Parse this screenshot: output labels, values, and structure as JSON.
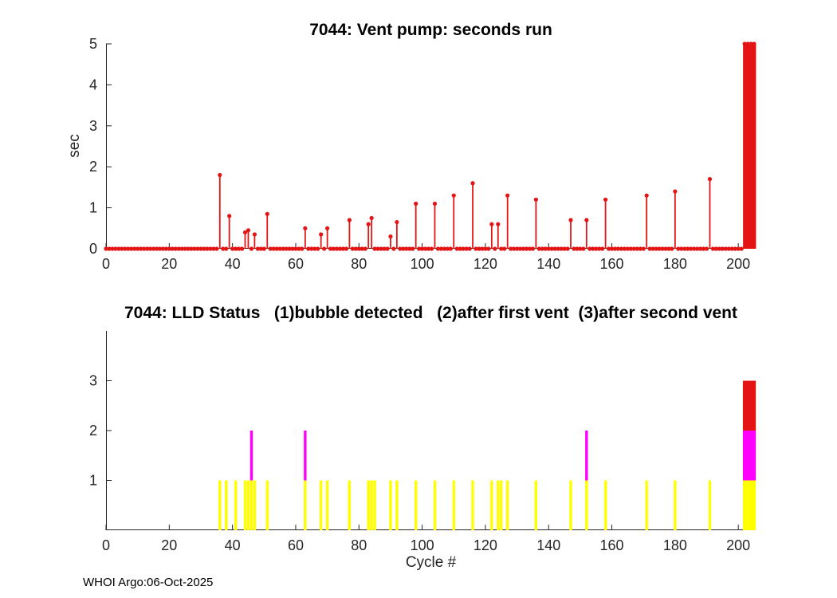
{
  "page": {
    "background": "#ffffff",
    "axis_color": "#262626",
    "footer": "WHOI Argo:06-Oct-2025"
  },
  "chart_data": [
    {
      "type": "stem",
      "title": "7044: Vent pump: seconds run",
      "xlabel": "",
      "ylabel": "sec",
      "xlim": [
        0,
        205.5
      ],
      "ylim": [
        0,
        5
      ],
      "xticks": [
        0,
        20,
        40,
        60,
        80,
        100,
        120,
        140,
        160,
        180,
        200
      ],
      "yticks": [
        0,
        1,
        2,
        3,
        4,
        5
      ],
      "grid": false,
      "legend": "none",
      "color": "#e51414",
      "zero_value_cycle_range": [
        0,
        201
      ],
      "points": [
        {
          "x": 36,
          "y": 1.8
        },
        {
          "x": 39,
          "y": 0.8
        },
        {
          "x": 44,
          "y": 0.4
        },
        {
          "x": 45,
          "y": 0.45
        },
        {
          "x": 47,
          "y": 0.35
        },
        {
          "x": 51,
          "y": 0.85
        },
        {
          "x": 63,
          "y": 0.5
        },
        {
          "x": 68,
          "y": 0.35
        },
        {
          "x": 70,
          "y": 0.5
        },
        {
          "x": 77,
          "y": 0.7
        },
        {
          "x": 83,
          "y": 0.6
        },
        {
          "x": 84,
          "y": 0.75
        },
        {
          "x": 90,
          "y": 0.3
        },
        {
          "x": 92,
          "y": 0.65
        },
        {
          "x": 98,
          "y": 1.1
        },
        {
          "x": 104,
          "y": 1.1
        },
        {
          "x": 110,
          "y": 1.3
        },
        {
          "x": 116,
          "y": 1.6
        },
        {
          "x": 122,
          "y": 0.6
        },
        {
          "x": 124,
          "y": 0.6
        },
        {
          "x": 127,
          "y": 1.3
        },
        {
          "x": 136,
          "y": 1.2
        },
        {
          "x": 147,
          "y": 0.7
        },
        {
          "x": 152,
          "y": 0.7
        },
        {
          "x": 158,
          "y": 1.2
        },
        {
          "x": 171,
          "y": 1.3
        },
        {
          "x": 180,
          "y": 1.4
        },
        {
          "x": 191,
          "y": 1.7
        },
        {
          "x": 202,
          "y": 5
        },
        {
          "x": 203,
          "y": 5
        },
        {
          "x": 204,
          "y": 5
        },
        {
          "x": 205,
          "y": 5
        }
      ]
    },
    {
      "type": "bar",
      "stacked": true,
      "title": "7044: LLD Status   (1)bubble detected   (2)after first vent  (3)after second vent",
      "xlabel": "Cycle #",
      "ylabel": "",
      "xlim": [
        0,
        205.5
      ],
      "ylim": [
        0,
        4
      ],
      "xticks": [
        0,
        20,
        40,
        60,
        80,
        100,
        120,
        140,
        160,
        180,
        200
      ],
      "yticks": [
        1,
        2,
        3
      ],
      "grid": false,
      "legend": "none",
      "level_colors": {
        "1": "#ffff00",
        "2": "#ff00ff",
        "3": "#e51414"
      },
      "bars": [
        {
          "x": 36,
          "level": 1
        },
        {
          "x": 38,
          "level": 1
        },
        {
          "x": 41,
          "level": 1
        },
        {
          "x": 44,
          "level": 1
        },
        {
          "x": 45,
          "level": 1
        },
        {
          "x": 46,
          "level": 2
        },
        {
          "x": 47,
          "level": 1
        },
        {
          "x": 51,
          "level": 1
        },
        {
          "x": 63,
          "level": 2
        },
        {
          "x": 68,
          "level": 1
        },
        {
          "x": 70,
          "level": 1
        },
        {
          "x": 77,
          "level": 1
        },
        {
          "x": 83,
          "level": 1
        },
        {
          "x": 84,
          "level": 1
        },
        {
          "x": 85,
          "level": 1
        },
        {
          "x": 90,
          "level": 1
        },
        {
          "x": 92,
          "level": 1
        },
        {
          "x": 98,
          "level": 1
        },
        {
          "x": 104,
          "level": 1
        },
        {
          "x": 110,
          "level": 1
        },
        {
          "x": 116,
          "level": 1
        },
        {
          "x": 122,
          "level": 1
        },
        {
          "x": 124,
          "level": 1
        },
        {
          "x": 125,
          "level": 1
        },
        {
          "x": 127,
          "level": 1
        },
        {
          "x": 136,
          "level": 1
        },
        {
          "x": 147,
          "level": 1
        },
        {
          "x": 152,
          "level": 2
        },
        {
          "x": 158,
          "level": 1
        },
        {
          "x": 171,
          "level": 1
        },
        {
          "x": 180,
          "level": 1
        },
        {
          "x": 191,
          "level": 1
        },
        {
          "x": 202,
          "level": 3
        },
        {
          "x": 203,
          "level": 3
        },
        {
          "x": 204,
          "level": 3
        },
        {
          "x": 205,
          "level": 3
        }
      ]
    }
  ]
}
